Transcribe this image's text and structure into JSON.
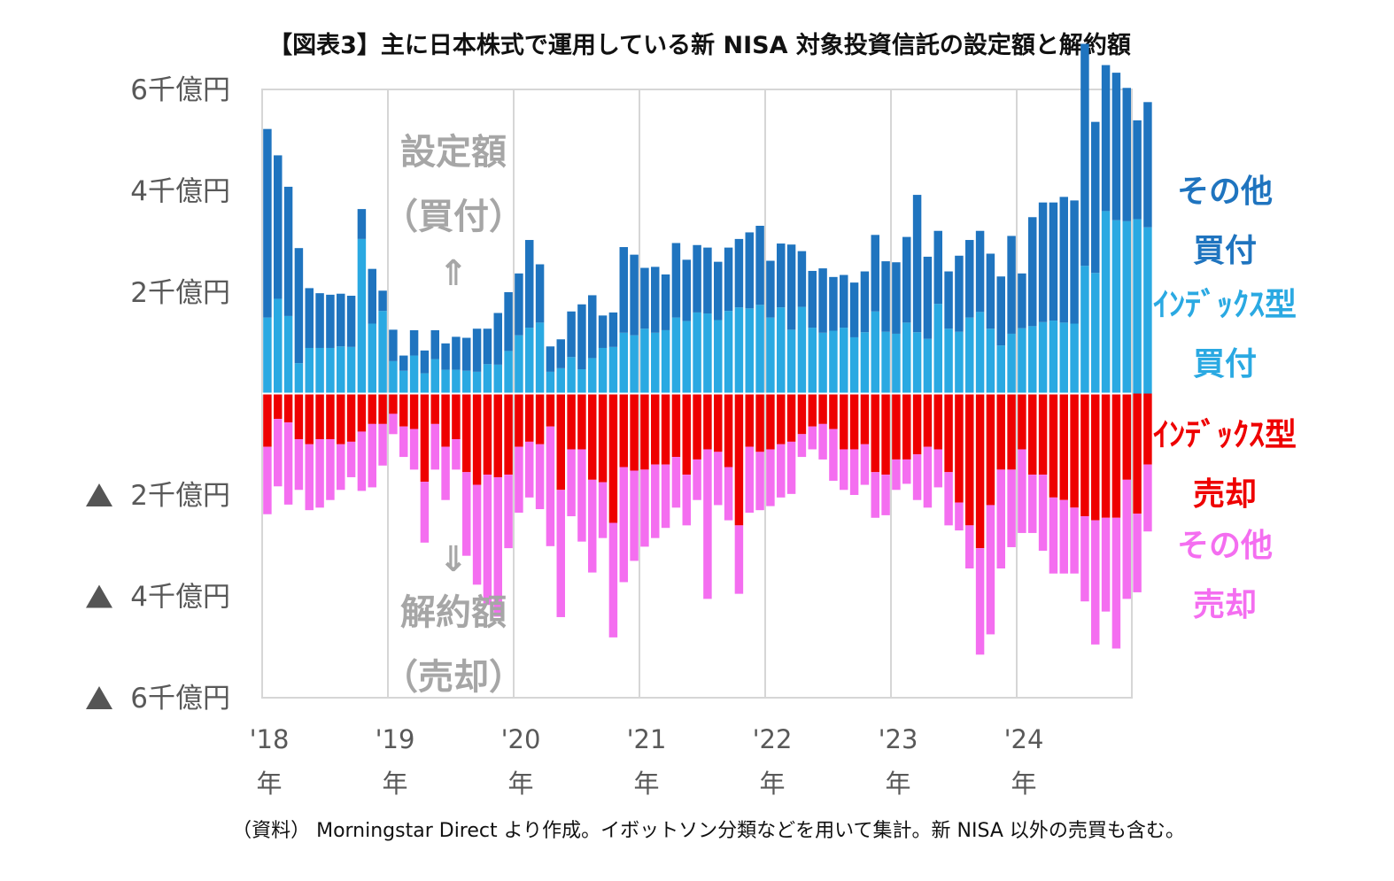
{
  "chart_data": {
    "type": "bar",
    "title": "【図表3】主に日本株式で運用している新 NISA 対象投資信託の設定額と解約額",
    "source_note": "（資料） Morningstar Direct より作成。イボットソン分類などを用いて集計。新 NISA 以外の売買も含む。",
    "yunit": "億円",
    "ylim": [
      -6000,
      6000
    ],
    "y_ticks": [
      {
        "value": 6000,
        "label": "6千億円"
      },
      {
        "value": 4000,
        "label": "4千億円"
      },
      {
        "value": 2000,
        "label": "2千億円"
      },
      {
        "value": -2000,
        "label": "▲ 2千億円"
      },
      {
        "value": -4000,
        "label": "▲ 4千億円"
      },
      {
        "value": -6000,
        "label": "▲ 6千億円"
      }
    ],
    "x_year_labels": [
      {
        "year": "'18",
        "suffix": "年"
      },
      {
        "year": "'19",
        "suffix": "年"
      },
      {
        "year": "'20",
        "suffix": "年"
      },
      {
        "year": "'21",
        "suffix": "年"
      },
      {
        "year": "'22",
        "suffix": "年"
      },
      {
        "year": "'23",
        "suffix": "年"
      },
      {
        "year": "'24",
        "suffix": "年"
      }
    ],
    "months_per_year": 12,
    "grid": "vertical-year-lines",
    "annotations": {
      "buy_label_1": "設定額",
      "buy_label_2": "（買付）",
      "buy_arrow": "⇑",
      "sell_arrow": "⇓",
      "sell_label_1": "解約額",
      "sell_label_2": "（売却）"
    },
    "legend": [
      {
        "lines": [
          "その他",
          "買付"
        ],
        "color": "#1f74bf"
      },
      {
        "lines": [
          "ｲﾝﾃﾞｯｸｽ型",
          "買付"
        ],
        "color": "#2aa9e2"
      },
      {
        "lines": [
          "ｲﾝﾃﾞｯｸｽ型",
          "売却"
        ],
        "color": "#ee0000"
      },
      {
        "lines": [
          "その他",
          "売却"
        ],
        "color": "#f46ef0"
      }
    ],
    "series": [
      {
        "name": "インデックス型 買付",
        "stack": "buy",
        "color": "#2aa9e2",
        "values": [
          1500,
          1870,
          1530,
          600,
          900,
          900,
          900,
          930,
          920,
          3050,
          1380,
          1630,
          640,
          450,
          750,
          400,
          680,
          470,
          470,
          450,
          430,
          580,
          570,
          840,
          1150,
          1300,
          1400,
          430,
          500,
          720,
          480,
          700,
          900,
          920,
          1200,
          1150,
          1280,
          1200,
          1250,
          1500,
          1430,
          1600,
          1580,
          1450,
          1630,
          1700,
          1680,
          1750,
          1500,
          1700,
          1260,
          1710,
          1300,
          1200,
          1240,
          1300,
          1110,
          1210,
          1620,
          1220,
          1180,
          1400,
          1210,
          1080,
          1770,
          1280,
          1220,
          1500,
          1610,
          1280,
          950,
          1180,
          1290,
          1330,
          1410,
          1440,
          1400,
          1380,
          2520,
          2380,
          3600,
          3420,
          3400,
          3440,
          3280
        ]
      },
      {
        "name": "その他 買付",
        "stack": "buy",
        "color": "#1f74bf",
        "values": [
          3720,
          2830,
          2550,
          2270,
          1180,
          1080,
          1050,
          1040,
          1010,
          590,
          1080,
          400,
          620,
          300,
          500,
          450,
          570,
          520,
          650,
          650,
          850,
          700,
          1020,
          1160,
          1220,
          1730,
          1150,
          500,
          570,
          900,
          1280,
          1240,
          640,
          680,
          1690,
          1590,
          1200,
          1300,
          1100,
          1470,
          1210,
          1330,
          1300,
          1150,
          1250,
          1350,
          1500,
          1560,
          1120,
          1260,
          1680,
          1100,
          1120,
          1270,
          1060,
          1040,
          1080,
          1200,
          1510,
          1390,
          1410,
          1690,
          2710,
          1620,
          1440,
          1130,
          1500,
          1530,
          1600,
          1480,
          1360,
          1930,
          1080,
          2150,
          2360,
          2330,
          2480,
          2430,
          4380,
          2980,
          2880,
          2910,
          2630,
          1950,
          2470
        ]
      },
      {
        "name": "インデックス型 売却",
        "stack": "sell",
        "color": "#ee0000",
        "values": [
          -1050,
          -500,
          -570,
          -900,
          -1000,
          -900,
          -900,
          -1000,
          -950,
          -750,
          -600,
          -600,
          -400,
          -650,
          -700,
          -1740,
          -600,
          -1050,
          -900,
          -1550,
          -1800,
          -1600,
          -1650,
          -1600,
          -1050,
          -950,
          -1000,
          -650,
          -1900,
          -1100,
          -1100,
          -1700,
          -1750,
          -2550,
          -1450,
          -1520,
          -1500,
          -1400,
          -1400,
          -1250,
          -1600,
          -1300,
          -1100,
          -1150,
          -1450,
          -2600,
          -1050,
          -1150,
          -1100,
          -1000,
          -950,
          -800,
          -650,
          -600,
          -700,
          -1100,
          -1100,
          -1000,
          -1550,
          -1600,
          -1300,
          -1300,
          -1200,
          -1050,
          -1100,
          -1550,
          -2150,
          -2600,
          -3050,
          -2200,
          -1500,
          -1500,
          -1100,
          -1600,
          -1600,
          -2050,
          -2100,
          -2250,
          -2420,
          -2500,
          -2450,
          -2450,
          -1700,
          -2370,
          -1400
        ]
      },
      {
        "name": "その他 売却",
        "stack": "sell",
        "color": "#f46ef0",
        "values": [
          -1330,
          -1330,
          -1620,
          -1000,
          -1300,
          -1350,
          -1200,
          -900,
          -700,
          -1170,
          -1250,
          -820,
          -400,
          -600,
          -800,
          -1200,
          -900,
          -1050,
          -600,
          -1650,
          -1970,
          -2570,
          -2750,
          -1450,
          -1300,
          -1100,
          -1280,
          -2360,
          -2510,
          -1320,
          -1820,
          -1830,
          -1100,
          -2260,
          -2270,
          -1780,
          -1520,
          -1450,
          -1250,
          -1000,
          -1000,
          -800,
          -2950,
          -1050,
          -1050,
          -1350,
          -1300,
          -1150,
          -1120,
          -1050,
          -1030,
          -450,
          -450,
          -700,
          -1020,
          -800,
          -900,
          -800,
          -900,
          -800,
          -600,
          -480,
          -900,
          -1200,
          -750,
          -1050,
          -550,
          -850,
          -2100,
          -2550,
          -1950,
          -1530,
          -1650,
          -1150,
          -1500,
          -1500,
          -1450,
          -1300,
          -1680,
          -2450,
          -1850,
          -2580,
          -2350,
          -1550,
          -1320
        ]
      }
    ]
  }
}
